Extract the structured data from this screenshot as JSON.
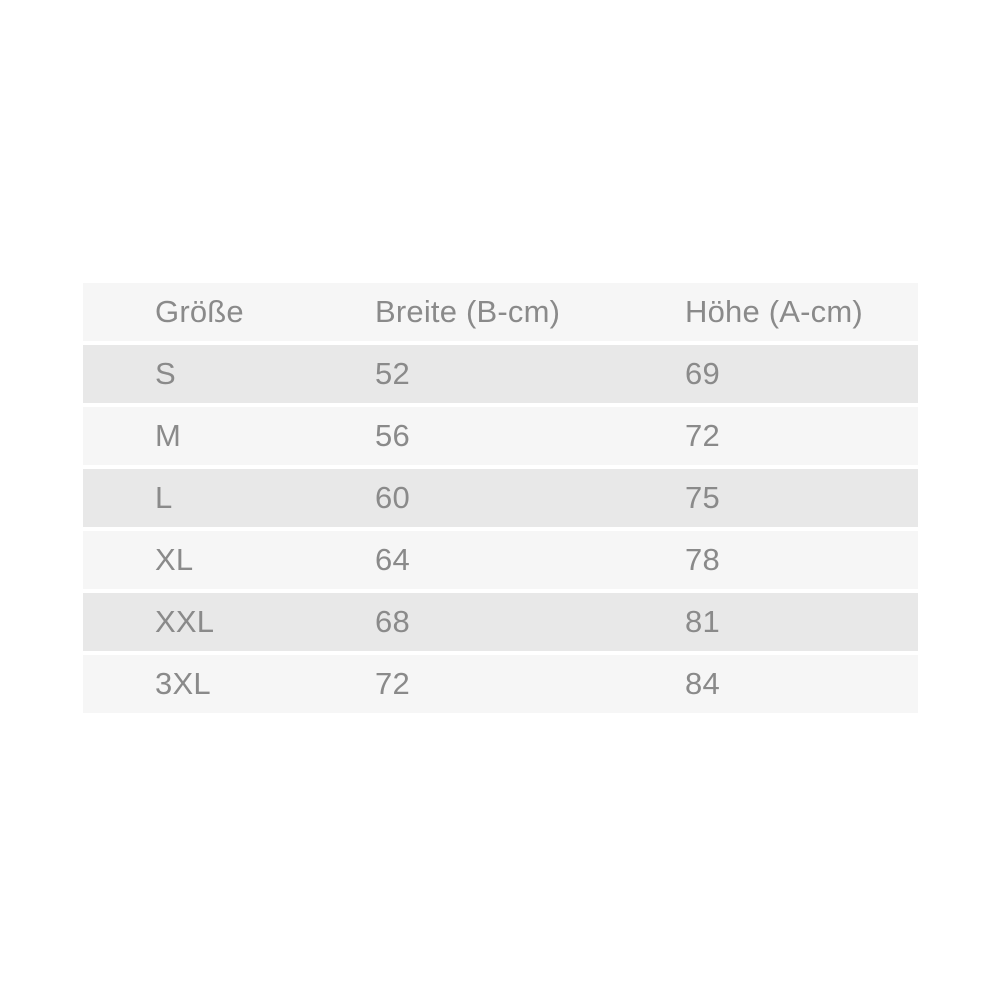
{
  "chart_data": {
    "type": "table",
    "title": "",
    "columns": [
      "Größe",
      "Breite (B-cm)",
      "Höhe (A-cm)"
    ],
    "rows": [
      [
        "S",
        "52",
        "69"
      ],
      [
        "M",
        "56",
        "72"
      ],
      [
        "L",
        "60",
        "75"
      ],
      [
        "XL",
        "64",
        "78"
      ],
      [
        "XXL",
        "68",
        "81"
      ],
      [
        "3XL",
        "72",
        "84"
      ]
    ]
  },
  "table": {
    "columns": [
      {
        "label": "Größe"
      },
      {
        "label": "Breite (B-cm)"
      },
      {
        "label": "Höhe (A-cm)"
      }
    ],
    "rows": [
      {
        "size": "S",
        "width_cm": "52",
        "height_cm": "69"
      },
      {
        "size": "M",
        "width_cm": "56",
        "height_cm": "72"
      },
      {
        "size": "L",
        "width_cm": "60",
        "height_cm": "75"
      },
      {
        "size": "XL",
        "width_cm": "64",
        "height_cm": "78"
      },
      {
        "size": "XXL",
        "width_cm": "68",
        "height_cm": "81"
      },
      {
        "size": "3XL",
        "width_cm": "72",
        "height_cm": "84"
      }
    ]
  },
  "colors": {
    "page_background": "#ffffff",
    "header_row_background": "#f6f6f6",
    "stripe_dark": "#e8e8e8",
    "stripe_light": "#f6f6f6",
    "text": "#8a8a8a"
  }
}
